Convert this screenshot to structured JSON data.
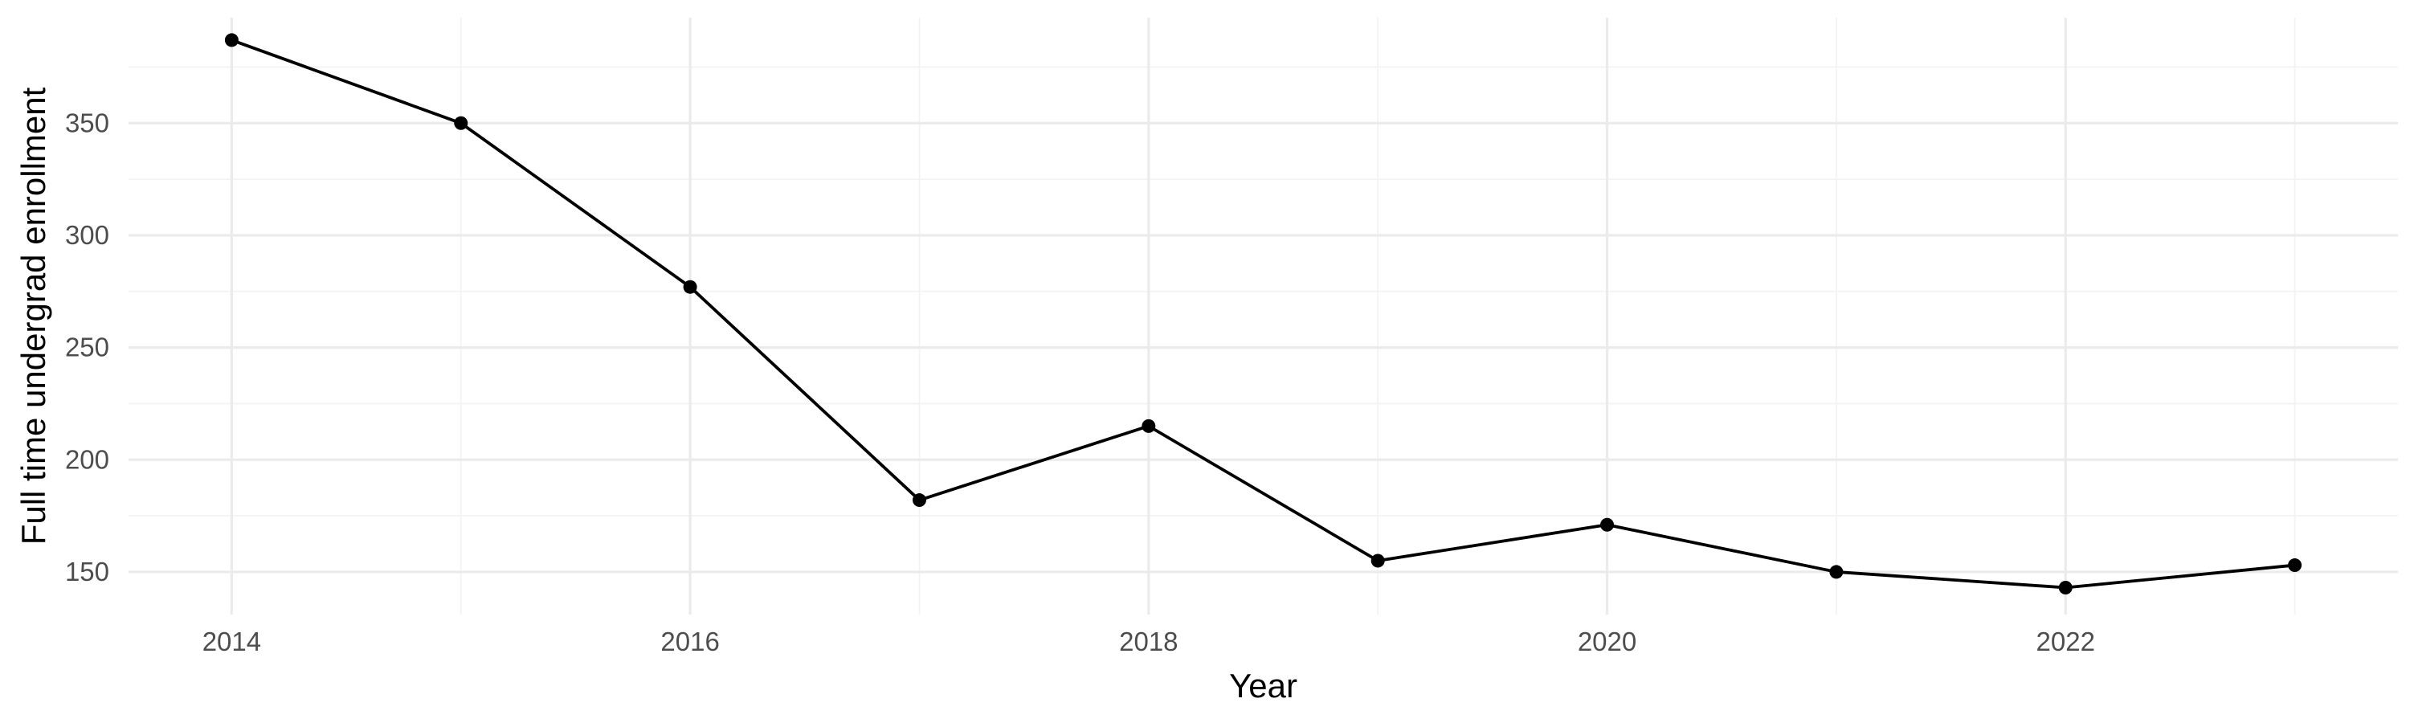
{
  "chart_data": {
    "type": "line",
    "title": "",
    "xlabel": "Year",
    "ylabel": "Full time undergrad enrollment",
    "x": [
      2014,
      2015,
      2016,
      2017,
      2018,
      2019,
      2020,
      2021,
      2022,
      2023
    ],
    "series": [
      {
        "values": [
          387,
          350,
          277,
          182,
          215,
          155,
          171,
          150,
          143,
          153
        ]
      }
    ],
    "xlim": [
      2013.55,
      2023.45
    ],
    "ylim": [
      131,
      397
    ],
    "x_ticks": [
      2014,
      2016,
      2018,
      2020,
      2022
    ],
    "x_tick_labels": [
      "2014",
      "2016",
      "2018",
      "2020",
      "2022"
    ],
    "y_ticks": [
      150,
      200,
      250,
      300,
      350
    ],
    "y_tick_labels": [
      "150",
      "200",
      "250",
      "300",
      "350"
    ],
    "grid": true,
    "legend": "none",
    "colors": {
      "line": "#000000",
      "point": "#000000",
      "grid": "#ebebeb",
      "tick_text": "#4d4d4d",
      "background": "#ffffff"
    }
  }
}
